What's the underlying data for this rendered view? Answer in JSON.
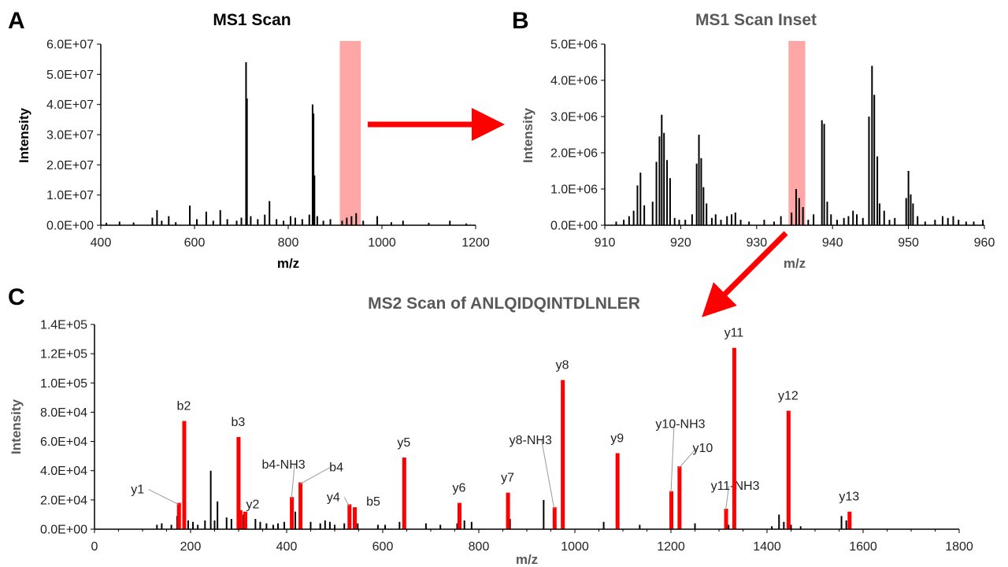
{
  "colors": {
    "peak": "#000000",
    "highlight": "#ff0000",
    "band": "#ffa6a6",
    "arrow": "#ff0000",
    "axis": "#000000"
  },
  "chart_data": [
    {
      "panel": "A",
      "type": "bar",
      "title": "MS1 Scan",
      "xlabel": "m/z",
      "ylabel": "Intensity",
      "xlim": [
        400,
        1200
      ],
      "ylim": [
        0,
        60000000
      ],
      "xticks": [
        "400",
        "600",
        "800",
        "1000",
        "1200"
      ],
      "yticks": [
        "0.0E+00",
        "1.0E+07",
        "2.0E+07",
        "3.0E+07",
        "4.0E+07",
        "5.0E+07",
        "6.0E+07"
      ],
      "highlight_band": [
        910,
        955
      ],
      "series": [
        {
          "values": [
            [
              412,
              800000
            ],
            [
              440,
              1200000
            ],
            [
              470,
              900000
            ],
            [
              510,
              2500000
            ],
            [
              520,
              5000000
            ],
            [
              530,
              1500000
            ],
            [
              545,
              3000000
            ],
            [
              560,
              1000000
            ],
            [
              590,
              6500000
            ],
            [
              605,
              2000000
            ],
            [
              625,
              4500000
            ],
            [
              640,
              1500000
            ],
            [
              655,
              5000000
            ],
            [
              670,
              2000000
            ],
            [
              690,
              1500000
            ],
            [
              700,
              2500000
            ],
            [
              710,
              54000000
            ],
            [
              712,
              42000000
            ],
            [
              720,
              3000000
            ],
            [
              735,
              2000000
            ],
            [
              750,
              3500000
            ],
            [
              760,
              8000000
            ],
            [
              775,
              2000000
            ],
            [
              790,
              1500000
            ],
            [
              805,
              3000000
            ],
            [
              815,
              2500000
            ],
            [
              830,
              2000000
            ],
            [
              845,
              3500000
            ],
            [
              852,
              40000000
            ],
            [
              854,
              37000000
            ],
            [
              856,
              16500000
            ],
            [
              862,
              3000000
            ],
            [
              875,
              1500000
            ],
            [
              890,
              2000000
            ],
            [
              915,
              1500000
            ],
            [
              925,
              2500000
            ],
            [
              935,
              3000000
            ],
            [
              945,
              4000000
            ],
            [
              960,
              1500000
            ],
            [
              990,
              3000000
            ],
            [
              1020,
              1000000
            ],
            [
              1045,
              1500000
            ],
            [
              1100,
              800000
            ],
            [
              1145,
              1500000
            ],
            [
              1180,
              600000
            ]
          ]
        }
      ]
    },
    {
      "panel": "B",
      "type": "bar",
      "title": "MS1 Scan Inset",
      "xlabel": "m/z",
      "ylabel": "Intensity",
      "xlim": [
        910,
        960
      ],
      "ylim": [
        0,
        5000000
      ],
      "xticks": [
        "910",
        "920",
        "930",
        "940",
        "950",
        "960"
      ],
      "yticks": [
        "0.0E+00",
        "1.0E+06",
        "2.0E+06",
        "3.0E+06",
        "4.0E+06",
        "5.0E+06"
      ],
      "highlight_band": [
        934.2,
        936.4
      ],
      "series": [
        {
          "values": [
            [
              911.5,
              100000
            ],
            [
              912.5,
              150000
            ],
            [
              913.2,
              250000
            ],
            [
              913.8,
              400000
            ],
            [
              914.3,
              1100000
            ],
            [
              914.7,
              1450000
            ],
            [
              915.2,
              550000
            ],
            [
              916.3,
              650000
            ],
            [
              916.8,
              1750000
            ],
            [
              917.2,
              2450000
            ],
            [
              917.5,
              3050000
            ],
            [
              917.8,
              2550000
            ],
            [
              918.2,
              1800000
            ],
            [
              918.6,
              1300000
            ],
            [
              919.2,
              200000
            ],
            [
              919.8,
              150000
            ],
            [
              920.6,
              150000
            ],
            [
              921.5,
              300000
            ],
            [
              922.1,
              1700000
            ],
            [
              922.4,
              2500000
            ],
            [
              922.7,
              1850000
            ],
            [
              923.0,
              1050000
            ],
            [
              923.4,
              600000
            ],
            [
              924.1,
              200000
            ],
            [
              924.6,
              300000
            ],
            [
              925.3,
              150000
            ],
            [
              926.1,
              250000
            ],
            [
              926.7,
              300000
            ],
            [
              927.2,
              350000
            ],
            [
              927.9,
              150000
            ],
            [
              929.0,
              100000
            ],
            [
              931.0,
              150000
            ],
            [
              932.3,
              100000
            ],
            [
              933.2,
              250000
            ],
            [
              934.6,
              350000
            ],
            [
              935.2,
              1000000
            ],
            [
              935.6,
              750000
            ],
            [
              936.1,
              500000
            ],
            [
              936.8,
              150000
            ],
            [
              937.5,
              300000
            ],
            [
              938.6,
              2900000
            ],
            [
              938.9,
              2800000
            ],
            [
              939.3,
              650000
            ],
            [
              939.8,
              300000
            ],
            [
              940.6,
              150000
            ],
            [
              941.5,
              200000
            ],
            [
              942.1,
              250000
            ],
            [
              942.7,
              400000
            ],
            [
              943.2,
              300000
            ],
            [
              944.0,
              200000
            ],
            [
              944.8,
              3000000
            ],
            [
              945.2,
              4400000
            ],
            [
              945.5,
              3600000
            ],
            [
              945.9,
              1900000
            ],
            [
              946.2,
              600000
            ],
            [
              946.8,
              400000
            ],
            [
              947.5,
              150000
            ],
            [
              948.2,
              200000
            ],
            [
              949.7,
              750000
            ],
            [
              950.0,
              1500000
            ],
            [
              950.3,
              850000
            ],
            [
              950.6,
              600000
            ],
            [
              951.2,
              250000
            ],
            [
              952.2,
              100000
            ],
            [
              953.5,
              150000
            ],
            [
              954.5,
              250000
            ],
            [
              955.2,
              200000
            ],
            [
              955.9,
              250000
            ],
            [
              956.6,
              150000
            ],
            [
              957.6,
              100000
            ],
            [
              958.6,
              100000
            ],
            [
              959.8,
              150000
            ]
          ]
        }
      ]
    },
    {
      "panel": "C",
      "type": "bar",
      "title": "MS2 Scan of ANLQIDQINTDLNLER",
      "xlabel": "m/z",
      "ylabel": "Intensity",
      "xlim": [
        0,
        1800
      ],
      "ylim": [
        0,
        140000
      ],
      "xticks": [
        "0",
        "200",
        "400",
        "600",
        "800",
        "1000",
        "1200",
        "1400",
        "1600",
        "1800"
      ],
      "yticks": [
        "0.0E+00",
        "2.0E+04",
        "4.0E+04",
        "6.0E+04",
        "8.0E+04",
        "1.0E+05",
        "1.2E+05",
        "1.4E+05"
      ],
      "background_peaks": [
        [
          130,
          3000
        ],
        [
          140,
          4000
        ],
        [
          160,
          3000
        ],
        [
          172,
          9000
        ],
        [
          195,
          6000
        ],
        [
          205,
          5000
        ],
        [
          215,
          3000
        ],
        [
          230,
          6000
        ],
        [
          242,
          40000
        ],
        [
          250,
          6000
        ],
        [
          256,
          19000
        ],
        [
          275,
          8000
        ],
        [
          285,
          7000
        ],
        [
          310,
          10000
        ],
        [
          335,
          7000
        ],
        [
          345,
          5000
        ],
        [
          358,
          4000
        ],
        [
          372,
          3000
        ],
        [
          382,
          4000
        ],
        [
          395,
          5000
        ],
        [
          418,
          12000
        ],
        [
          430,
          3000
        ],
        [
          450,
          5000
        ],
        [
          470,
          4000
        ],
        [
          480,
          6000
        ],
        [
          490,
          5000
        ],
        [
          500,
          3000
        ],
        [
          520,
          4000
        ],
        [
          530,
          10000
        ],
        [
          548,
          4000
        ],
        [
          590,
          3000
        ],
        [
          605,
          3000
        ],
        [
          635,
          5000
        ],
        [
          690,
          4000
        ],
        [
          720,
          3000
        ],
        [
          755,
          4000
        ],
        [
          770,
          6000
        ],
        [
          785,
          5000
        ],
        [
          865,
          7000
        ],
        [
          935,
          20000
        ],
        [
          960,
          4000
        ],
        [
          1060,
          5000
        ],
        [
          1090,
          4000
        ],
        [
          1135,
          3000
        ],
        [
          1200,
          4000
        ],
        [
          1250,
          4000
        ],
        [
          1320,
          3000
        ],
        [
          1410,
          2000
        ],
        [
          1425,
          10000
        ],
        [
          1435,
          5000
        ],
        [
          1450,
          3000
        ],
        [
          1470,
          2000
        ],
        [
          1555,
          9000
        ],
        [
          1565,
          6000
        ]
      ],
      "labeled_peaks": [
        {
          "label": "y1",
          "mz": 175,
          "intensity": 18000
        },
        {
          "label": "b2",
          "mz": 186,
          "intensity": 74000
        },
        {
          "label": "b3",
          "mz": 299,
          "intensity": 63000
        },
        {
          "label": "",
          "mz": 303,
          "intensity": 13000
        },
        {
          "label": "y2",
          "mz": 313,
          "intensity": 12000
        },
        {
          "label": "b4-NH3",
          "mz": 410,
          "intensity": 22000
        },
        {
          "label": "b4",
          "mz": 428,
          "intensity": 32000
        },
        {
          "label": "y4",
          "mz": 530,
          "intensity": 17000
        },
        {
          "label": "b5",
          "mz": 541,
          "intensity": 15000
        },
        {
          "label": "y5",
          "mz": 644,
          "intensity": 49000
        },
        {
          "label": "y6",
          "mz": 759,
          "intensity": 18000
        },
        {
          "label": "y7",
          "mz": 860,
          "intensity": 25000
        },
        {
          "label": "y8-NH3",
          "mz": 957,
          "intensity": 15000
        },
        {
          "label": "y8",
          "mz": 974,
          "intensity": 102000
        },
        {
          "label": "y9",
          "mz": 1088,
          "intensity": 52000
        },
        {
          "label": "y10-NH3",
          "mz": 1200,
          "intensity": 26000
        },
        {
          "label": "y10",
          "mz": 1217,
          "intensity": 43000
        },
        {
          "label": "y11-NH3",
          "mz": 1314,
          "intensity": 14000
        },
        {
          "label": "y11",
          "mz": 1331,
          "intensity": 124000
        },
        {
          "label": "y12",
          "mz": 1444,
          "intensity": 81000
        },
        {
          "label": "y13",
          "mz": 1571,
          "intensity": 12000
        }
      ]
    }
  ]
}
